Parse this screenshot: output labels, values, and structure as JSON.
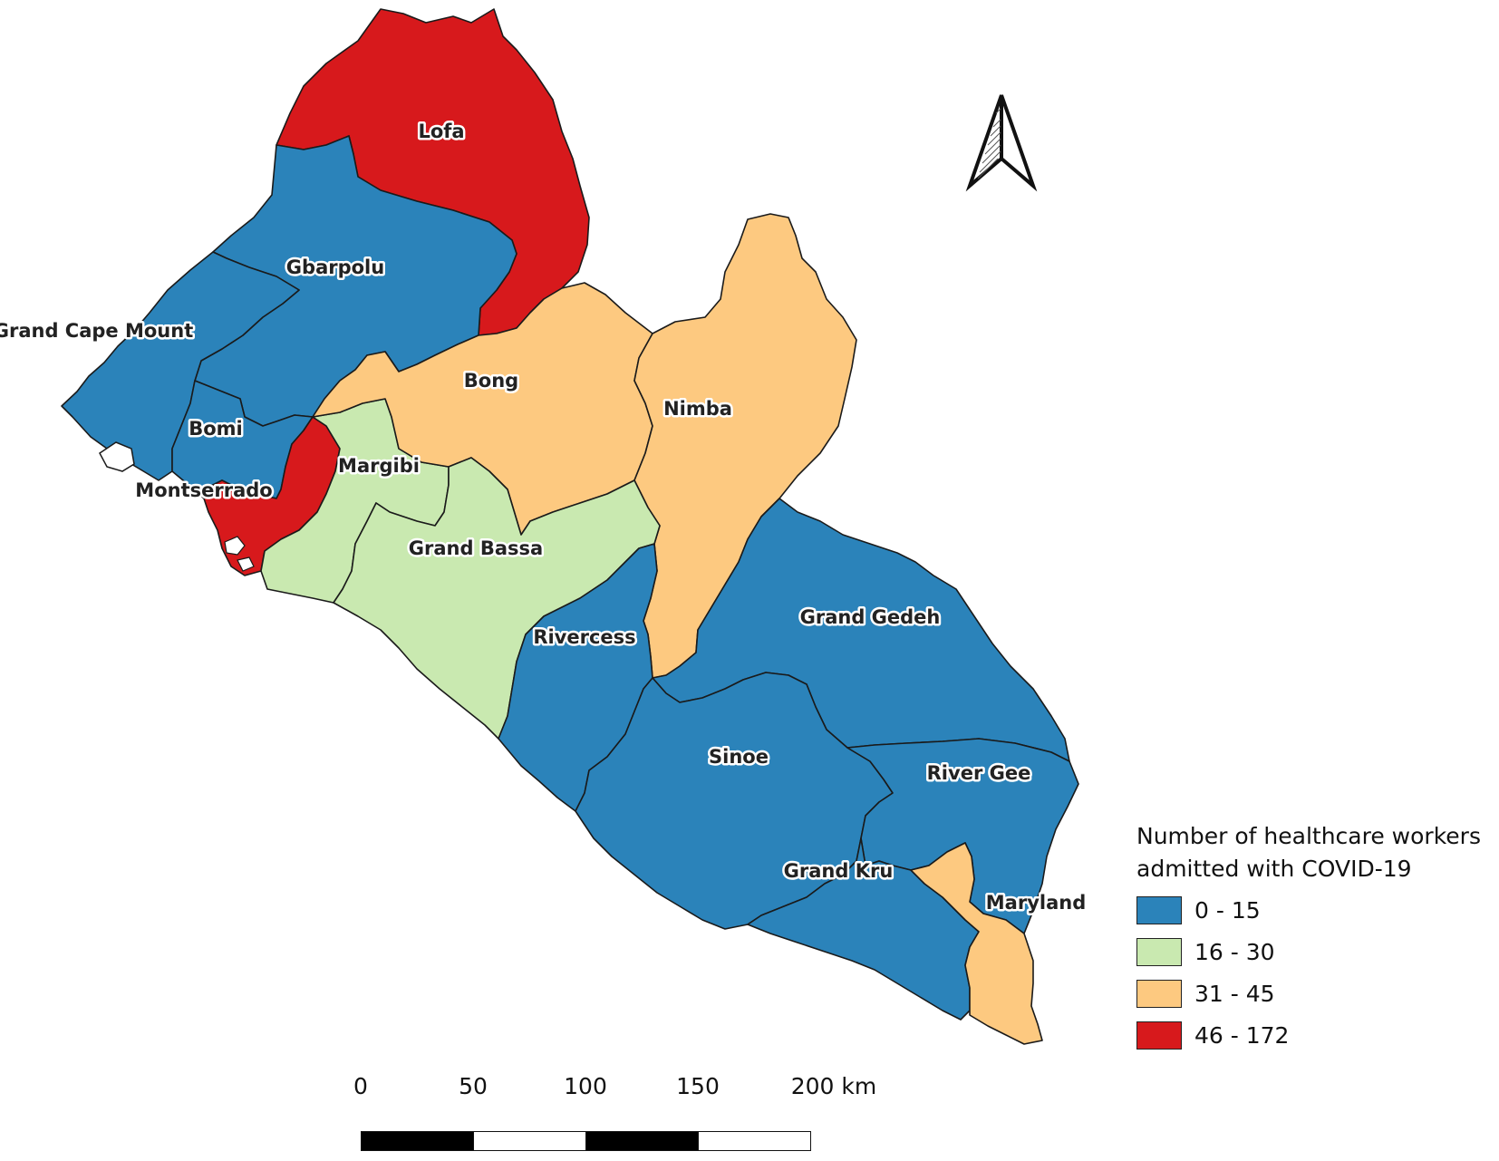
{
  "legend": {
    "title_line1": "Number of healthcare workers",
    "title_line2": "admitted with COVID-19",
    "classes": [
      {
        "label": "0 - 15",
        "color": "#2b83ba"
      },
      {
        "label": "16 - 30",
        "color": "#c9e9b0"
      },
      {
        "label": "31 - 45",
        "color": "#fdc980"
      },
      {
        "label": "46 - 172",
        "color": "#d7191c"
      }
    ]
  },
  "counties": [
    {
      "name": "Lofa",
      "class": 3
    },
    {
      "name": "Gbarpolu",
      "class": 0
    },
    {
      "name": "Grand Cape Mount",
      "class": 0
    },
    {
      "name": "Bomi",
      "class": 0
    },
    {
      "name": "Montserrado",
      "class": 3
    },
    {
      "name": "Margibi",
      "class": 1
    },
    {
      "name": "Bong",
      "class": 2
    },
    {
      "name": "Nimba",
      "class": 2
    },
    {
      "name": "Grand Bassa",
      "class": 1
    },
    {
      "name": "Rivercess",
      "class": 0
    },
    {
      "name": "Grand Gedeh",
      "class": 0
    },
    {
      "name": "Sinoe",
      "class": 0
    },
    {
      "name": "River Gee",
      "class": 0
    },
    {
      "name": "Grand Kru",
      "class": 0
    },
    {
      "name": "Maryland",
      "class": 2
    }
  ],
  "scale": {
    "labels": [
      "0",
      "50",
      "100",
      "150",
      "200 km"
    ]
  }
}
